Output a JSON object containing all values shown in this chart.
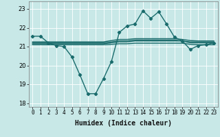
{
  "xlabel": "Humidex (Indice chaleur)",
  "bg_color": "#c8e8e8",
  "grid_color": "#ffffff",
  "line_color": "#1a6b6b",
  "x": [
    0,
    1,
    2,
    3,
    4,
    5,
    6,
    7,
    8,
    9,
    10,
    11,
    12,
    13,
    14,
    15,
    16,
    17,
    18,
    19,
    20,
    21,
    22,
    23
  ],
  "line_main": [
    21.55,
    21.55,
    21.2,
    21.05,
    21.0,
    20.45,
    19.5,
    18.5,
    18.5,
    19.3,
    20.2,
    21.75,
    22.1,
    22.2,
    22.9,
    22.5,
    22.85,
    22.2,
    21.5,
    21.3,
    20.85,
    21.05,
    21.1,
    21.2
  ],
  "line_flat1": [
    21.15,
    21.15,
    21.15,
    21.15,
    21.15,
    21.15,
    21.15,
    21.15,
    21.15,
    21.15,
    21.2,
    21.25,
    21.25,
    21.3,
    21.3,
    21.3,
    21.3,
    21.3,
    21.3,
    21.3,
    21.2,
    21.2,
    21.2,
    21.2
  ],
  "line_flat2": [
    21.1,
    21.1,
    21.1,
    21.1,
    21.1,
    21.1,
    21.1,
    21.1,
    21.1,
    21.1,
    21.12,
    21.15,
    21.15,
    21.18,
    21.18,
    21.18,
    21.18,
    21.18,
    21.18,
    21.18,
    21.12,
    21.1,
    21.1,
    21.1
  ],
  "line_flat3": [
    21.2,
    21.2,
    21.2,
    21.2,
    21.2,
    21.2,
    21.2,
    21.2,
    21.2,
    21.2,
    21.25,
    21.3,
    21.3,
    21.35,
    21.35,
    21.35,
    21.35,
    21.35,
    21.35,
    21.3,
    21.25,
    21.25,
    21.25,
    21.25
  ],
  "line_flat4": [
    21.25,
    21.25,
    21.25,
    21.25,
    21.25,
    21.25,
    21.25,
    21.25,
    21.25,
    21.25,
    21.32,
    21.38,
    21.38,
    21.42,
    21.42,
    21.42,
    21.42,
    21.42,
    21.42,
    21.38,
    21.32,
    21.3,
    21.3,
    21.3
  ],
  "ylim": [
    17.8,
    23.4
  ],
  "yticks": [
    18,
    19,
    20,
    21,
    22,
    23
  ],
  "xticks": [
    0,
    1,
    2,
    3,
    4,
    5,
    6,
    7,
    8,
    9,
    10,
    11,
    12,
    13,
    14,
    15,
    16,
    17,
    18,
    19,
    20,
    21,
    22,
    23
  ],
  "marker": "D",
  "markersize": 2.2,
  "linewidth": 1.0,
  "tick_fontsize": 5.5,
  "xlabel_fontsize": 7.0
}
